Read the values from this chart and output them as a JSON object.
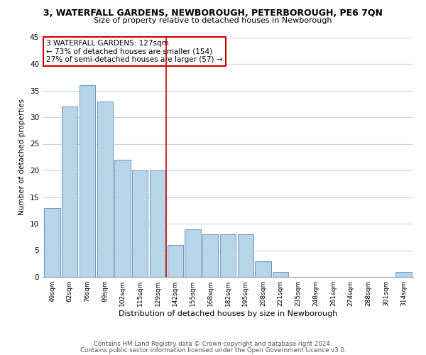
{
  "title": "3, WATERFALL GARDENS, NEWBOROUGH, PETERBOROUGH, PE6 7QN",
  "subtitle": "Size of property relative to detached houses in Newborough",
  "xlabel": "Distribution of detached houses by size in Newborough",
  "ylabel": "Number of detached properties",
  "bar_labels": [
    "49sqm",
    "62sqm",
    "76sqm",
    "89sqm",
    "102sqm",
    "115sqm",
    "129sqm",
    "142sqm",
    "155sqm",
    "168sqm",
    "182sqm",
    "195sqm",
    "208sqm",
    "221sqm",
    "235sqm",
    "248sqm",
    "261sqm",
    "274sqm",
    "288sqm",
    "301sqm",
    "314sqm"
  ],
  "bar_values": [
    13,
    32,
    36,
    33,
    22,
    20,
    20,
    6,
    9,
    8,
    8,
    8,
    3,
    1,
    0,
    0,
    0,
    0,
    0,
    0,
    1
  ],
  "bar_color": "#b8d4e8",
  "bar_edge_color": "#6699bb",
  "highlight_index": 6,
  "highlight_line_color": "#cc0000",
  "ylim": [
    0,
    45
  ],
  "yticks": [
    0,
    5,
    10,
    15,
    20,
    25,
    30,
    35,
    40,
    45
  ],
  "annotation_title": "3 WATERFALL GARDENS: 127sqm",
  "annotation_line1": "← 73% of detached houses are smaller (154)",
  "annotation_line2": "27% of semi-detached houses are larger (57) →",
  "annotation_box_color": "#ffffff",
  "annotation_box_edge": "#cc0000",
  "footer_line1": "Contains HM Land Registry data © Crown copyright and database right 2024.",
  "footer_line2": "Contains public sector information licensed under the Open Government Licence v3.0.",
  "background_color": "#ffffff",
  "grid_color": "#c8d8e8"
}
